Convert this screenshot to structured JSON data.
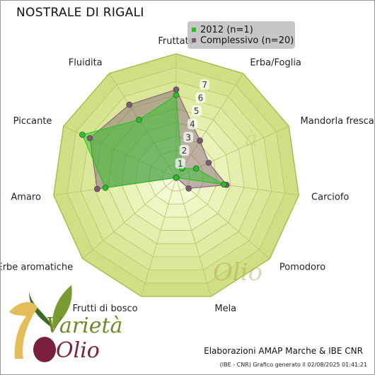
{
  "chart_data": {
    "type": "radar",
    "title": "NOSTRALE DI RIGALI",
    "axes": [
      "Fruttato",
      "Erba/Foglia",
      "Mandorla fresca",
      "Carciofo",
      "Pomodoro",
      "Mela",
      "Frutti di bosco",
      "Erbe aromatiche",
      "Amaro",
      "Piccante",
      "Fluidita"
    ],
    "rlim": [
      0,
      9
    ],
    "ticks": [
      1,
      2,
      3,
      4,
      5,
      6,
      7
    ],
    "series": [
      {
        "name": "2012 (n=1)",
        "color": "#22c322",
        "values": [
          6.0,
          0.8,
          1.6,
          3.5,
          0,
          0,
          0,
          0,
          5.2,
          7.5,
          5.0
        ]
      },
      {
        "name": "Complessivo (n=20)",
        "color": "#7d5a73",
        "values": [
          6.4,
          3.2,
          2.6,
          3.7,
          1.2,
          0,
          0,
          0,
          5.8,
          6.9,
          6.3
        ]
      }
    ],
    "legend_position": "top-right",
    "grid": true
  },
  "credit": "Elaborazioni AMAP Marche & IBE CNR",
  "footer": "(IBE - CNR) Grafico generato il 02/08/2025 01:41:21",
  "logo": {
    "text_variety": "Varietà",
    "text_olio": "Olio",
    "number": "1"
  }
}
